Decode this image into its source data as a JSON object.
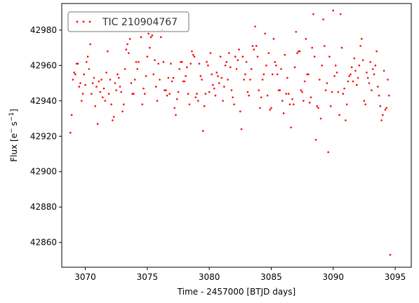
{
  "chart_data": {
    "type": "scatter",
    "xlabel": "Time - 2457000 [BTJD days]",
    "ylabel_main": "Flux [e",
    "ylabel_sup1": "−",
    "ylabel_mid": "s",
    "ylabel_sup2": "−1",
    "ylabel_end": "]",
    "xlim": [
      3068.1,
      3096.3
    ],
    "ylim": [
      42846,
      42995
    ],
    "xticks": [
      3070,
      3075,
      3080,
      3085,
      3090,
      3095
    ],
    "yticks": [
      42860,
      42880,
      42900,
      42920,
      42940,
      42960,
      42980
    ],
    "marker_color": "#ff0000",
    "legend_position": "top-left",
    "series": [
      {
        "name": "TIC 210904767",
        "points": [
          [
            3068.8,
            42922
          ],
          [
            3068.9,
            42932
          ],
          [
            3069.0,
            42952
          ],
          [
            3069.1,
            42956
          ],
          [
            3069.2,
            42955
          ],
          [
            3069.3,
            42961
          ],
          [
            3069.4,
            42961
          ],
          [
            3069.5,
            42948
          ],
          [
            3069.6,
            42950
          ],
          [
            3069.7,
            42940
          ],
          [
            3069.8,
            42944
          ],
          [
            3069.9,
            42955
          ],
          [
            3070.0,
            42949
          ],
          [
            3070.1,
            42962
          ],
          [
            3070.2,
            42965
          ],
          [
            3070.3,
            42958
          ],
          [
            3070.4,
            42972
          ],
          [
            3070.5,
            42944
          ],
          [
            3070.6,
            42950
          ],
          [
            3070.7,
            42953
          ],
          [
            3070.8,
            42937
          ],
          [
            3070.9,
            42948
          ],
          [
            3071.0,
            42927
          ],
          [
            3071.1,
            42951
          ],
          [
            3071.2,
            42945
          ],
          [
            3071.3,
            42952
          ],
          [
            3071.4,
            42942
          ],
          [
            3071.5,
            42947
          ],
          [
            3071.6,
            42940
          ],
          [
            3071.7,
            42956
          ],
          [
            3071.8,
            42968
          ],
          [
            3071.9,
            42944
          ],
          [
            3072.0,
            42952
          ],
          [
            3072.1,
            42938
          ],
          [
            3072.2,
            42929
          ],
          [
            3072.3,
            42931
          ],
          [
            3072.4,
            42950
          ],
          [
            3072.5,
            42946
          ],
          [
            3072.6,
            42955
          ],
          [
            3072.7,
            42953
          ],
          [
            3072.8,
            42948
          ],
          [
            3072.9,
            42945
          ],
          [
            3073.0,
            42934
          ],
          [
            3073.1,
            42938
          ],
          [
            3073.2,
            42958
          ],
          [
            3073.3,
            42969
          ],
          [
            3073.4,
            42972
          ],
          [
            3073.5,
            42967
          ],
          [
            3073.6,
            42975
          ],
          [
            3073.7,
            42950
          ],
          [
            3073.8,
            42944
          ],
          [
            3073.9,
            42944
          ],
          [
            3074.0,
            42952
          ],
          [
            3074.1,
            42962
          ],
          [
            3074.2,
            42958
          ],
          [
            3074.3,
            42962
          ],
          [
            3074.4,
            42981
          ],
          [
            3074.5,
            42976
          ],
          [
            3074.6,
            42938
          ],
          [
            3074.7,
            42947
          ],
          [
            3074.8,
            42944
          ],
          [
            3074.9,
            42954
          ],
          [
            3075.0,
            42965
          ],
          [
            3075.1,
            42978
          ],
          [
            3075.2,
            42970
          ],
          [
            3075.3,
            42976
          ],
          [
            3075.4,
            42977
          ],
          [
            3075.5,
            42955
          ],
          [
            3075.6,
            42963
          ],
          [
            3075.7,
            42948
          ],
          [
            3075.8,
            42940
          ],
          [
            3075.9,
            42961
          ],
          [
            3076.0,
            42952
          ],
          [
            3076.1,
            42976
          ],
          [
            3076.2,
            42980
          ],
          [
            3076.3,
            42962
          ],
          [
            3076.4,
            42946
          ],
          [
            3076.5,
            42946
          ],
          [
            3076.6,
            42943
          ],
          [
            3076.7,
            42953
          ],
          [
            3076.8,
            42944
          ],
          [
            3076.9,
            42961
          ],
          [
            3077.0,
            42951
          ],
          [
            3077.1,
            42953
          ],
          [
            3077.2,
            42936
          ],
          [
            3077.3,
            42932
          ],
          [
            3077.4,
            42941
          ],
          [
            3077.5,
            42945
          ],
          [
            3077.6,
            42958
          ],
          [
            3077.7,
            42962
          ],
          [
            3077.8,
            42962
          ],
          [
            3077.9,
            42951
          ],
          [
            3078.0,
            42951
          ],
          [
            3078.1,
            42954
          ],
          [
            3078.2,
            42959
          ],
          [
            3078.3,
            42944
          ],
          [
            3078.4,
            42938
          ],
          [
            3078.5,
            42961
          ],
          [
            3078.6,
            42968
          ],
          [
            3078.7,
            42966
          ],
          [
            3078.8,
            42965
          ],
          [
            3078.9,
            42942
          ],
          [
            3079.0,
            42944
          ],
          [
            3079.1,
            42940
          ],
          [
            3079.2,
            42961
          ],
          [
            3079.3,
            42954
          ],
          [
            3079.4,
            42952
          ],
          [
            3079.5,
            42923
          ],
          [
            3079.6,
            42937
          ],
          [
            3079.7,
            42944
          ],
          [
            3079.8,
            42962
          ],
          [
            3079.9,
            42960
          ],
          [
            3080.0,
            42945
          ],
          [
            3080.1,
            42967
          ],
          [
            3080.2,
            42955
          ],
          [
            3080.3,
            42949
          ],
          [
            3080.4,
            42947
          ],
          [
            3080.5,
            42943
          ],
          [
            3080.6,
            42956
          ],
          [
            3080.7,
            42954
          ],
          [
            3080.8,
            42950
          ],
          [
            3080.9,
            42965
          ],
          [
            3081.0,
            42953
          ],
          [
            3081.1,
            42940
          ],
          [
            3081.2,
            42948
          ],
          [
            3081.3,
            42960
          ],
          [
            3081.4,
            42962
          ],
          [
            3081.5,
            42952
          ],
          [
            3081.6,
            42967
          ],
          [
            3081.7,
            42959
          ],
          [
            3081.8,
            42946
          ],
          [
            3081.9,
            42942
          ],
          [
            3082.0,
            42938
          ],
          [
            3082.1,
            42965
          ],
          [
            3082.2,
            42958
          ],
          [
            3082.3,
            42963
          ],
          [
            3082.4,
            42969
          ],
          [
            3082.5,
            42934
          ],
          [
            3082.6,
            42924
          ],
          [
            3082.7,
            42965
          ],
          [
            3082.8,
            42952
          ],
          [
            3082.9,
            42955
          ],
          [
            3083.0,
            42962
          ],
          [
            3083.1,
            42945
          ],
          [
            3083.2,
            42943
          ],
          [
            3083.3,
            42952
          ],
          [
            3083.4,
            42958
          ],
          [
            3083.5,
            42971
          ],
          [
            3083.6,
            42969
          ],
          [
            3083.7,
            42982
          ],
          [
            3083.8,
            42971
          ],
          [
            3083.9,
            42965
          ],
          [
            3084.0,
            42946
          ],
          [
            3084.1,
            42936
          ],
          [
            3084.2,
            42942
          ],
          [
            3084.3,
            42952
          ],
          [
            3084.4,
            42955
          ],
          [
            3084.5,
            42978
          ],
          [
            3084.6,
            42960
          ],
          [
            3084.7,
            42943
          ],
          [
            3084.8,
            42967
          ],
          [
            3084.9,
            42935
          ],
          [
            3085.0,
            42936
          ],
          [
            3085.1,
            42955
          ],
          [
            3085.2,
            42975
          ],
          [
            3085.3,
            42962
          ],
          [
            3085.4,
            42960
          ],
          [
            3085.5,
            42955
          ],
          [
            3085.6,
            42946
          ],
          [
            3085.7,
            42946
          ],
          [
            3085.8,
            42958
          ],
          [
            3085.9,
            42940
          ],
          [
            3086.0,
            42933
          ],
          [
            3086.1,
            42966
          ],
          [
            3086.2,
            42944
          ],
          [
            3086.3,
            42953
          ],
          [
            3086.4,
            42944
          ],
          [
            3086.5,
            42938
          ],
          [
            3086.6,
            42925
          ],
          [
            3086.7,
            42941
          ],
          [
            3086.8,
            42938
          ],
          [
            3086.9,
            42959
          ],
          [
            3087.0,
            42979
          ],
          [
            3087.1,
            42967
          ],
          [
            3087.2,
            42968
          ],
          [
            3087.3,
            42968
          ],
          [
            3087.4,
            42946
          ],
          [
            3087.5,
            42945
          ],
          [
            3087.6,
            42940
          ],
          [
            3087.7,
            42951
          ],
          [
            3087.8,
            42975
          ],
          [
            3087.9,
            42955
          ],
          [
            3088.0,
            42955
          ],
          [
            3088.1,
            42939
          ],
          [
            3088.2,
            42942
          ],
          [
            3088.3,
            42970
          ],
          [
            3088.4,
            42989
          ],
          [
            3088.5,
            42965
          ],
          [
            3088.6,
            42918
          ],
          [
            3088.7,
            42937
          ],
          [
            3088.8,
            42936
          ],
          [
            3088.9,
            42952
          ],
          [
            3089.0,
            42930
          ],
          [
            3089.1,
            42960
          ],
          [
            3089.2,
            42986
          ],
          [
            3089.3,
            42971
          ],
          [
            3089.4,
            42946
          ],
          [
            3089.5,
            42950
          ],
          [
            3089.6,
            42911
          ],
          [
            3089.7,
            42965
          ],
          [
            3089.8,
            42937
          ],
          [
            3089.9,
            42945
          ],
          [
            3090.0,
            42991
          ],
          [
            3090.1,
            42954
          ],
          [
            3090.2,
            42960
          ],
          [
            3090.3,
            42956
          ],
          [
            3090.4,
            42945
          ],
          [
            3090.5,
            42932
          ],
          [
            3090.6,
            42989
          ],
          [
            3090.7,
            42970
          ],
          [
            3090.8,
            42944
          ],
          [
            3090.9,
            42947
          ],
          [
            3091.0,
            42929
          ],
          [
            3091.1,
            42938
          ],
          [
            3091.2,
            42951
          ],
          [
            3091.3,
            42954
          ],
          [
            3091.4,
            42955
          ],
          [
            3091.5,
            42959
          ],
          [
            3091.6,
            42951
          ],
          [
            3091.7,
            42964
          ],
          [
            3091.8,
            42957
          ],
          [
            3091.9,
            42949
          ],
          [
            3092.0,
            42953
          ],
          [
            3092.1,
            42960
          ],
          [
            3092.2,
            42971
          ],
          [
            3092.3,
            42975
          ],
          [
            3092.4,
            42963
          ],
          [
            3092.5,
            42940
          ],
          [
            3092.6,
            42938
          ],
          [
            3092.7,
            42956
          ],
          [
            3092.8,
            42953
          ],
          [
            3092.9,
            42950
          ],
          [
            3093.0,
            42962
          ],
          [
            3093.1,
            42946
          ],
          [
            3093.2,
            42958
          ],
          [
            3093.3,
            42955
          ],
          [
            3093.4,
            42960
          ],
          [
            3093.5,
            42968
          ],
          [
            3093.6,
            42948
          ],
          [
            3093.7,
            42943
          ],
          [
            3093.8,
            42937
          ],
          [
            3093.9,
            42929
          ],
          [
            3094.0,
            42932
          ],
          [
            3094.1,
            42957
          ],
          [
            3094.2,
            42935
          ],
          [
            3094.3,
            42936
          ],
          [
            3094.4,
            42952
          ],
          [
            3094.5,
            42943
          ],
          [
            3094.6,
            42853
          ]
        ]
      }
    ]
  }
}
